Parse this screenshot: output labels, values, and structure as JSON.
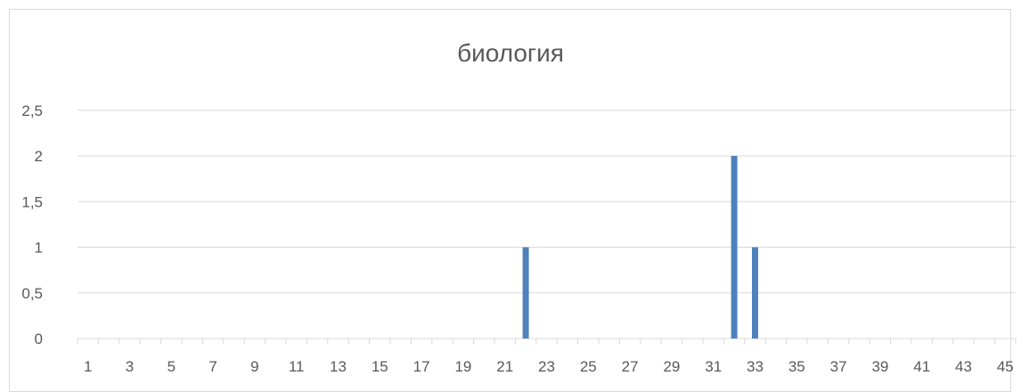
{
  "chart_data": {
    "type": "bar",
    "title": "биология",
    "xlabel": "",
    "ylabel": "",
    "categories": [
      1,
      2,
      3,
      4,
      5,
      6,
      7,
      8,
      9,
      10,
      11,
      12,
      13,
      14,
      15,
      16,
      17,
      18,
      19,
      20,
      21,
      22,
      23,
      24,
      25,
      26,
      27,
      28,
      29,
      30,
      31,
      32,
      33,
      34,
      35,
      36,
      37,
      38,
      39,
      40,
      41,
      42,
      43,
      44,
      45
    ],
    "x_tick_labels": [
      "1",
      "3",
      "5",
      "7",
      "9",
      "11",
      "13",
      "15",
      "17",
      "19",
      "21",
      "23",
      "25",
      "27",
      "29",
      "31",
      "33",
      "35",
      "37",
      "39",
      "41",
      "43",
      "45"
    ],
    "values": [
      0,
      0,
      0,
      0,
      0,
      0,
      0,
      0,
      0,
      0,
      0,
      0,
      0,
      0,
      0,
      0,
      0,
      0,
      0,
      0,
      0,
      1,
      0,
      0,
      0,
      0,
      0,
      0,
      0,
      0,
      0,
      2,
      1,
      0,
      0,
      0,
      0,
      0,
      0,
      0,
      0,
      0,
      0,
      0,
      0
    ],
    "y_ticks": [
      "0",
      "0,5",
      "1",
      "1,5",
      "2",
      "2,5"
    ],
    "y_tick_values": [
      0,
      0.5,
      1,
      1.5,
      2,
      2.5
    ],
    "ylim": [
      0,
      2.5
    ],
    "grid": true,
    "legend": "none",
    "bar_color": "#4f81bd",
    "gridline_color": "#d9d9d9",
    "text_color": "#595959"
  }
}
